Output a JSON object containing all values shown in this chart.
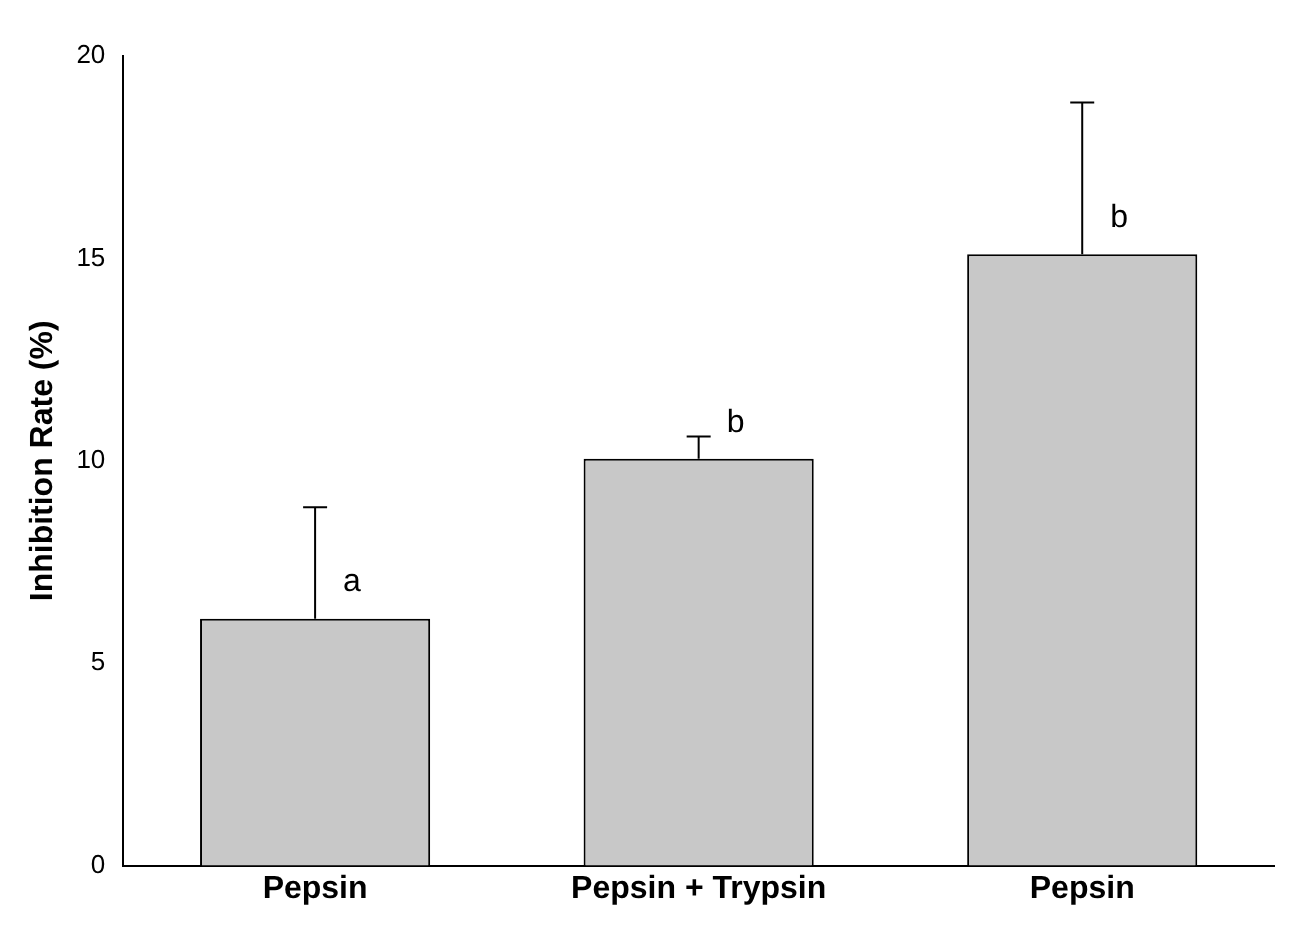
{
  "chart_data": {
    "type": "bar",
    "ylabel": "Inhibition Rate (%)",
    "categories": [
      "Pepsin",
      "Pepsin + Trypsin",
      "Pepsin"
    ],
    "values": [
      6.1,
      10.05,
      15.1
    ],
    "errors": [
      [
        6.1,
        8.85
      ],
      [
        10.05,
        10.6
      ],
      [
        15.1,
        18.85
      ]
    ],
    "color": "#c8c8c8",
    "ylim": [
      0,
      20
    ],
    "yticks": [
      0,
      5,
      10,
      15,
      20
    ],
    "grid": false,
    "legend": false,
    "annotations": [
      "a",
      "b",
      "b"
    ]
  }
}
